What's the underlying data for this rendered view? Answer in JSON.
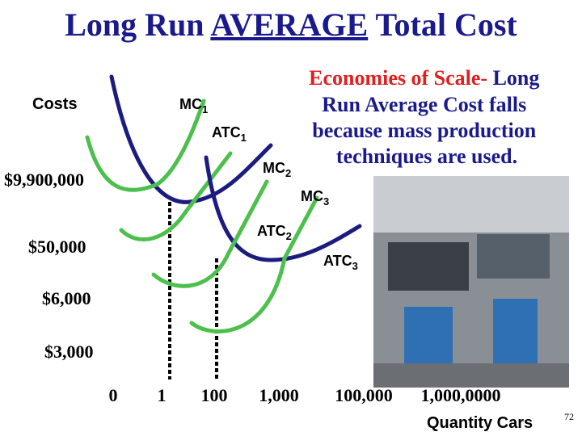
{
  "title": {
    "before": "Long Run ",
    "emphasis": "AVERAGE",
    "after": " Total Cost"
  },
  "y_axis_label": "Costs",
  "curve_labels": [
    {
      "text": "MC",
      "sub": "1"
    },
    {
      "text": "ATC",
      "sub": "1"
    },
    {
      "text": "MC",
      "sub": "2"
    },
    {
      "text": "MC",
      "sub": "3"
    },
    {
      "text": "ATC",
      "sub": "2"
    },
    {
      "text": "ATC",
      "sub": "3"
    }
  ],
  "explanation": {
    "highlight": "Economies of Scale-",
    "lines": [
      "Long",
      "Run Average Cost falls",
      "because mass production",
      "techniques are used."
    ]
  },
  "y_labels": [
    "$9,900,000",
    "$50,000",
    "$6,000",
    "$3,000"
  ],
  "x_labels": [
    "0",
    "1",
    "100",
    "1,000",
    "100,000",
    "1,000,0000"
  ],
  "x_axis_label": "Quantity Cars",
  "page_number": "72"
}
